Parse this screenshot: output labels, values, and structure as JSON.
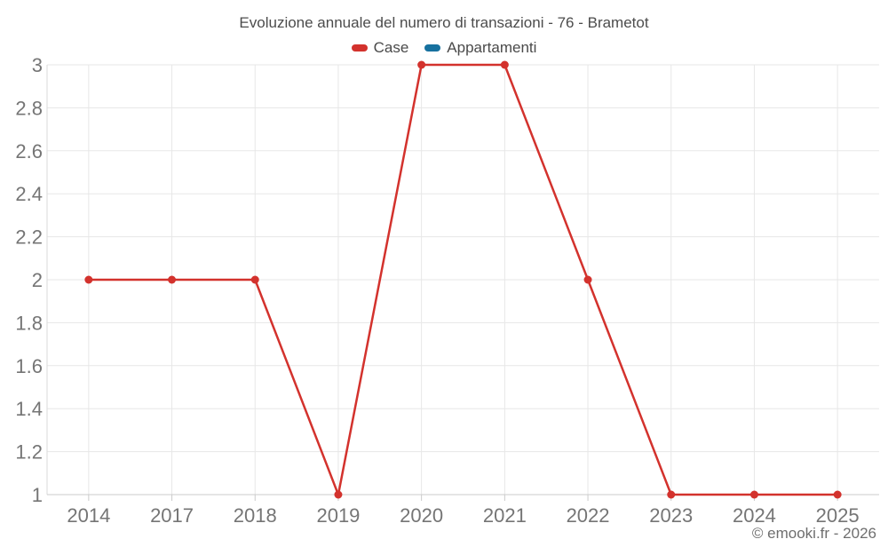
{
  "header": {
    "title": "Evoluzione annuale del numero di transazioni - 76 - Brametot"
  },
  "legend": {
    "items": [
      {
        "label": "Case",
        "color": "#d3322d"
      },
      {
        "label": "Appartamenti",
        "color": "#17719f"
      }
    ]
  },
  "footer": {
    "credit": "© emooki.fr - 2026"
  },
  "chart_data": {
    "type": "line",
    "title": "Evoluzione annuale del numero di transazioni - 76 - Brametot",
    "categories": [
      "2014",
      "2017",
      "2018",
      "2019",
      "2020",
      "2021",
      "2022",
      "2023",
      "2024",
      "2025"
    ],
    "series": [
      {
        "name": "Case",
        "color": "#d3322d",
        "marker": "circle",
        "values": [
          2,
          2,
          2,
          1,
          3,
          3,
          2,
          1,
          1,
          1
        ]
      },
      {
        "name": "Appartamenti",
        "color": "#17719f",
        "marker": "circle",
        "values": []
      }
    ],
    "xlabel": "",
    "ylabel": "",
    "ylim": [
      1,
      3
    ],
    "yticks": [
      1,
      1.2,
      1.4,
      1.6,
      1.8,
      2,
      2.2,
      2.4,
      2.6,
      2.8,
      3
    ],
    "grid": true,
    "legend_position": "top"
  },
  "style": {
    "background": "#ffffff",
    "grid_color": "#e7e7e7",
    "left_axis_color": "#dadada",
    "axis_line_color": "#cbcbcb",
    "tick_color": "#cbcbcb",
    "axis_label_color": "#757575",
    "title_color": "#4c4c4c",
    "legend_text_color": "#4a4a4a",
    "footer_color": "#6e6e6e"
  }
}
